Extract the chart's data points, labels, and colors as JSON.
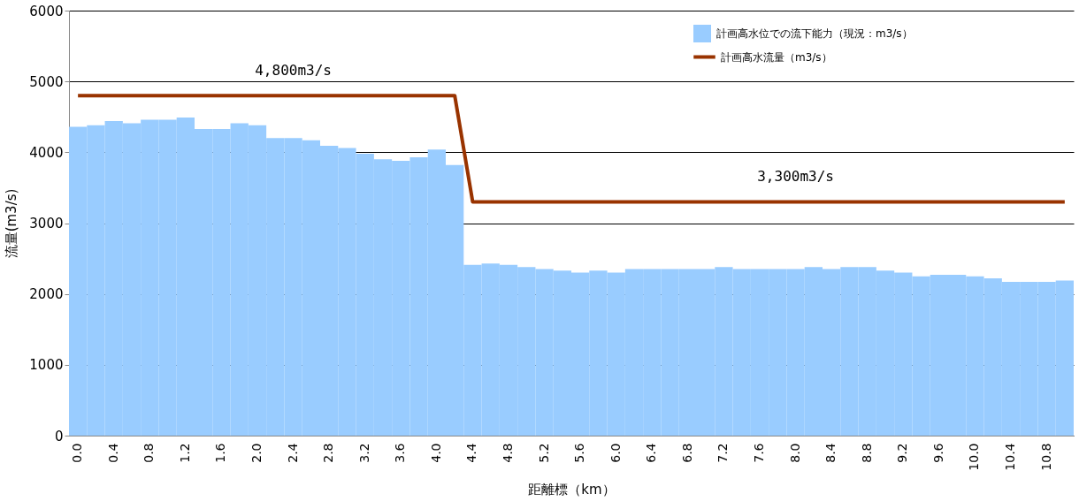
{
  "chart_data": {
    "type": "bar",
    "categories": [
      "0.0",
      null,
      "0.4",
      null,
      "0.8",
      null,
      "1.2",
      null,
      "1.6",
      null,
      "2.0",
      null,
      "2.4",
      null,
      "2.8",
      null,
      "3.2",
      null,
      "3.6",
      null,
      "4.0",
      null,
      "4.4",
      null,
      "4.8",
      null,
      "5.2",
      null,
      "5.6",
      null,
      "6.0",
      null,
      "6.4",
      null,
      "6.8",
      null,
      "7.2",
      null,
      "7.6",
      null,
      "8.0",
      null,
      "8.4",
      null,
      "8.8",
      null,
      "9.2",
      null,
      "9.6",
      null,
      "10.0",
      null,
      "10.4",
      null,
      "10.8",
      null
    ],
    "series": [
      {
        "name": "計画高水位での流下能力（現況：m3/s）",
        "color": "#99ccff",
        "values": [
          4360,
          4380,
          4440,
          4410,
          4460,
          4460,
          4490,
          4330,
          4330,
          4410,
          4380,
          4200,
          4200,
          4170,
          4090,
          4060,
          3980,
          3900,
          3880,
          3930,
          4040,
          3820,
          2410,
          2430,
          2410,
          2380,
          2350,
          2330,
          2300,
          2330,
          2300,
          2350,
          2350,
          2350,
          2350,
          2350,
          2380,
          2350,
          2350,
          2350,
          2350,
          2380,
          2350,
          2380,
          2380,
          2330,
          2300,
          2250,
          2270,
          2270,
          2250,
          2220,
          2170,
          2170,
          2170,
          2190
        ]
      },
      {
        "name": "計画高水流量（m3/s）",
        "type": "line",
        "color": "#993300",
        "values": [
          4800,
          4800,
          4800,
          4800,
          4800,
          4800,
          4800,
          4800,
          4800,
          4800,
          4800,
          4800,
          4800,
          4800,
          4800,
          4800,
          4800,
          4800,
          4800,
          4800,
          4800,
          4800,
          3300,
          3300,
          3300,
          3300,
          3300,
          3300,
          3300,
          3300,
          3300,
          3300,
          3300,
          3300,
          3300,
          3300,
          3300,
          3300,
          3300,
          3300,
          3300,
          3300,
          3300,
          3300,
          3300,
          3300,
          3300,
          3300,
          3300,
          3300,
          3300,
          3300,
          3300,
          3300,
          3300,
          3300
        ]
      }
    ],
    "xlabel": "距離標（km）",
    "ylabel": "流量(m3/s)",
    "ylim": [
      0,
      6000
    ],
    "yticks": [
      0,
      1000,
      2000,
      3000,
      4000,
      5000,
      6000
    ],
    "grid": "y",
    "legend": "top right",
    "annotations": [
      {
        "text": "4,800m3/s",
        "x": "2.4",
        "y": 4800
      },
      {
        "text": "3,300m3/s",
        "x": "8.0",
        "y": 3300
      }
    ]
  }
}
